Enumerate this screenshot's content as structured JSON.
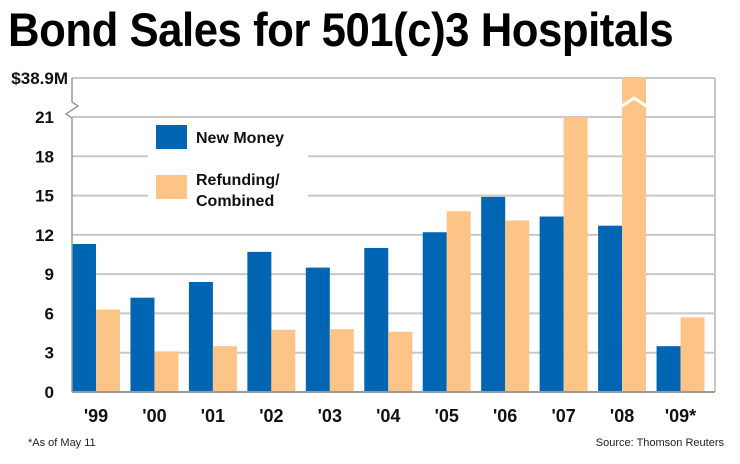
{
  "chart_data": {
    "type": "bar",
    "title": "Bond Sales for 501(c)3 Hospitals",
    "xlabel": "",
    "ylabel": "",
    "categories": [
      "'99",
      "'00",
      "'01",
      "'02",
      "'03",
      "'04",
      "'05",
      "'06",
      "'07",
      "'08",
      "'09*"
    ],
    "series": [
      {
        "name": "New Money",
        "color": "#0066b3",
        "values": [
          11.3,
          7.2,
          8.4,
          10.7,
          9.5,
          11.0,
          12.2,
          14.9,
          13.4,
          12.7,
          3.5
        ]
      },
      {
        "name": "Refunding/ Combined",
        "color": "#fdc487",
        "values": [
          6.3,
          3.1,
          3.5,
          4.75,
          4.8,
          4.6,
          13.8,
          13.1,
          21.0,
          38.9,
          5.7
        ]
      }
    ],
    "ylim": [
      0,
      21
    ],
    "yticks": [
      0,
      3,
      6,
      9,
      12,
      15,
      18,
      21
    ],
    "y_break": {
      "top_label": "$38.9M",
      "top_value": 38.9,
      "broken_series": "Refunding/ Combined",
      "broken_category": "'08"
    },
    "legend": {
      "placement": "top-left",
      "entries": [
        {
          "label_lines": [
            "New Money"
          ],
          "color": "#0066b3"
        },
        {
          "label_lines": [
            "Refunding/",
            "Combined"
          ],
          "color": "#fdc487"
        }
      ]
    },
    "grid": true,
    "grid_color": "#c8c8c8",
    "footnote": "*As of May 11",
    "source": "Source: Thomson Reuters"
  }
}
